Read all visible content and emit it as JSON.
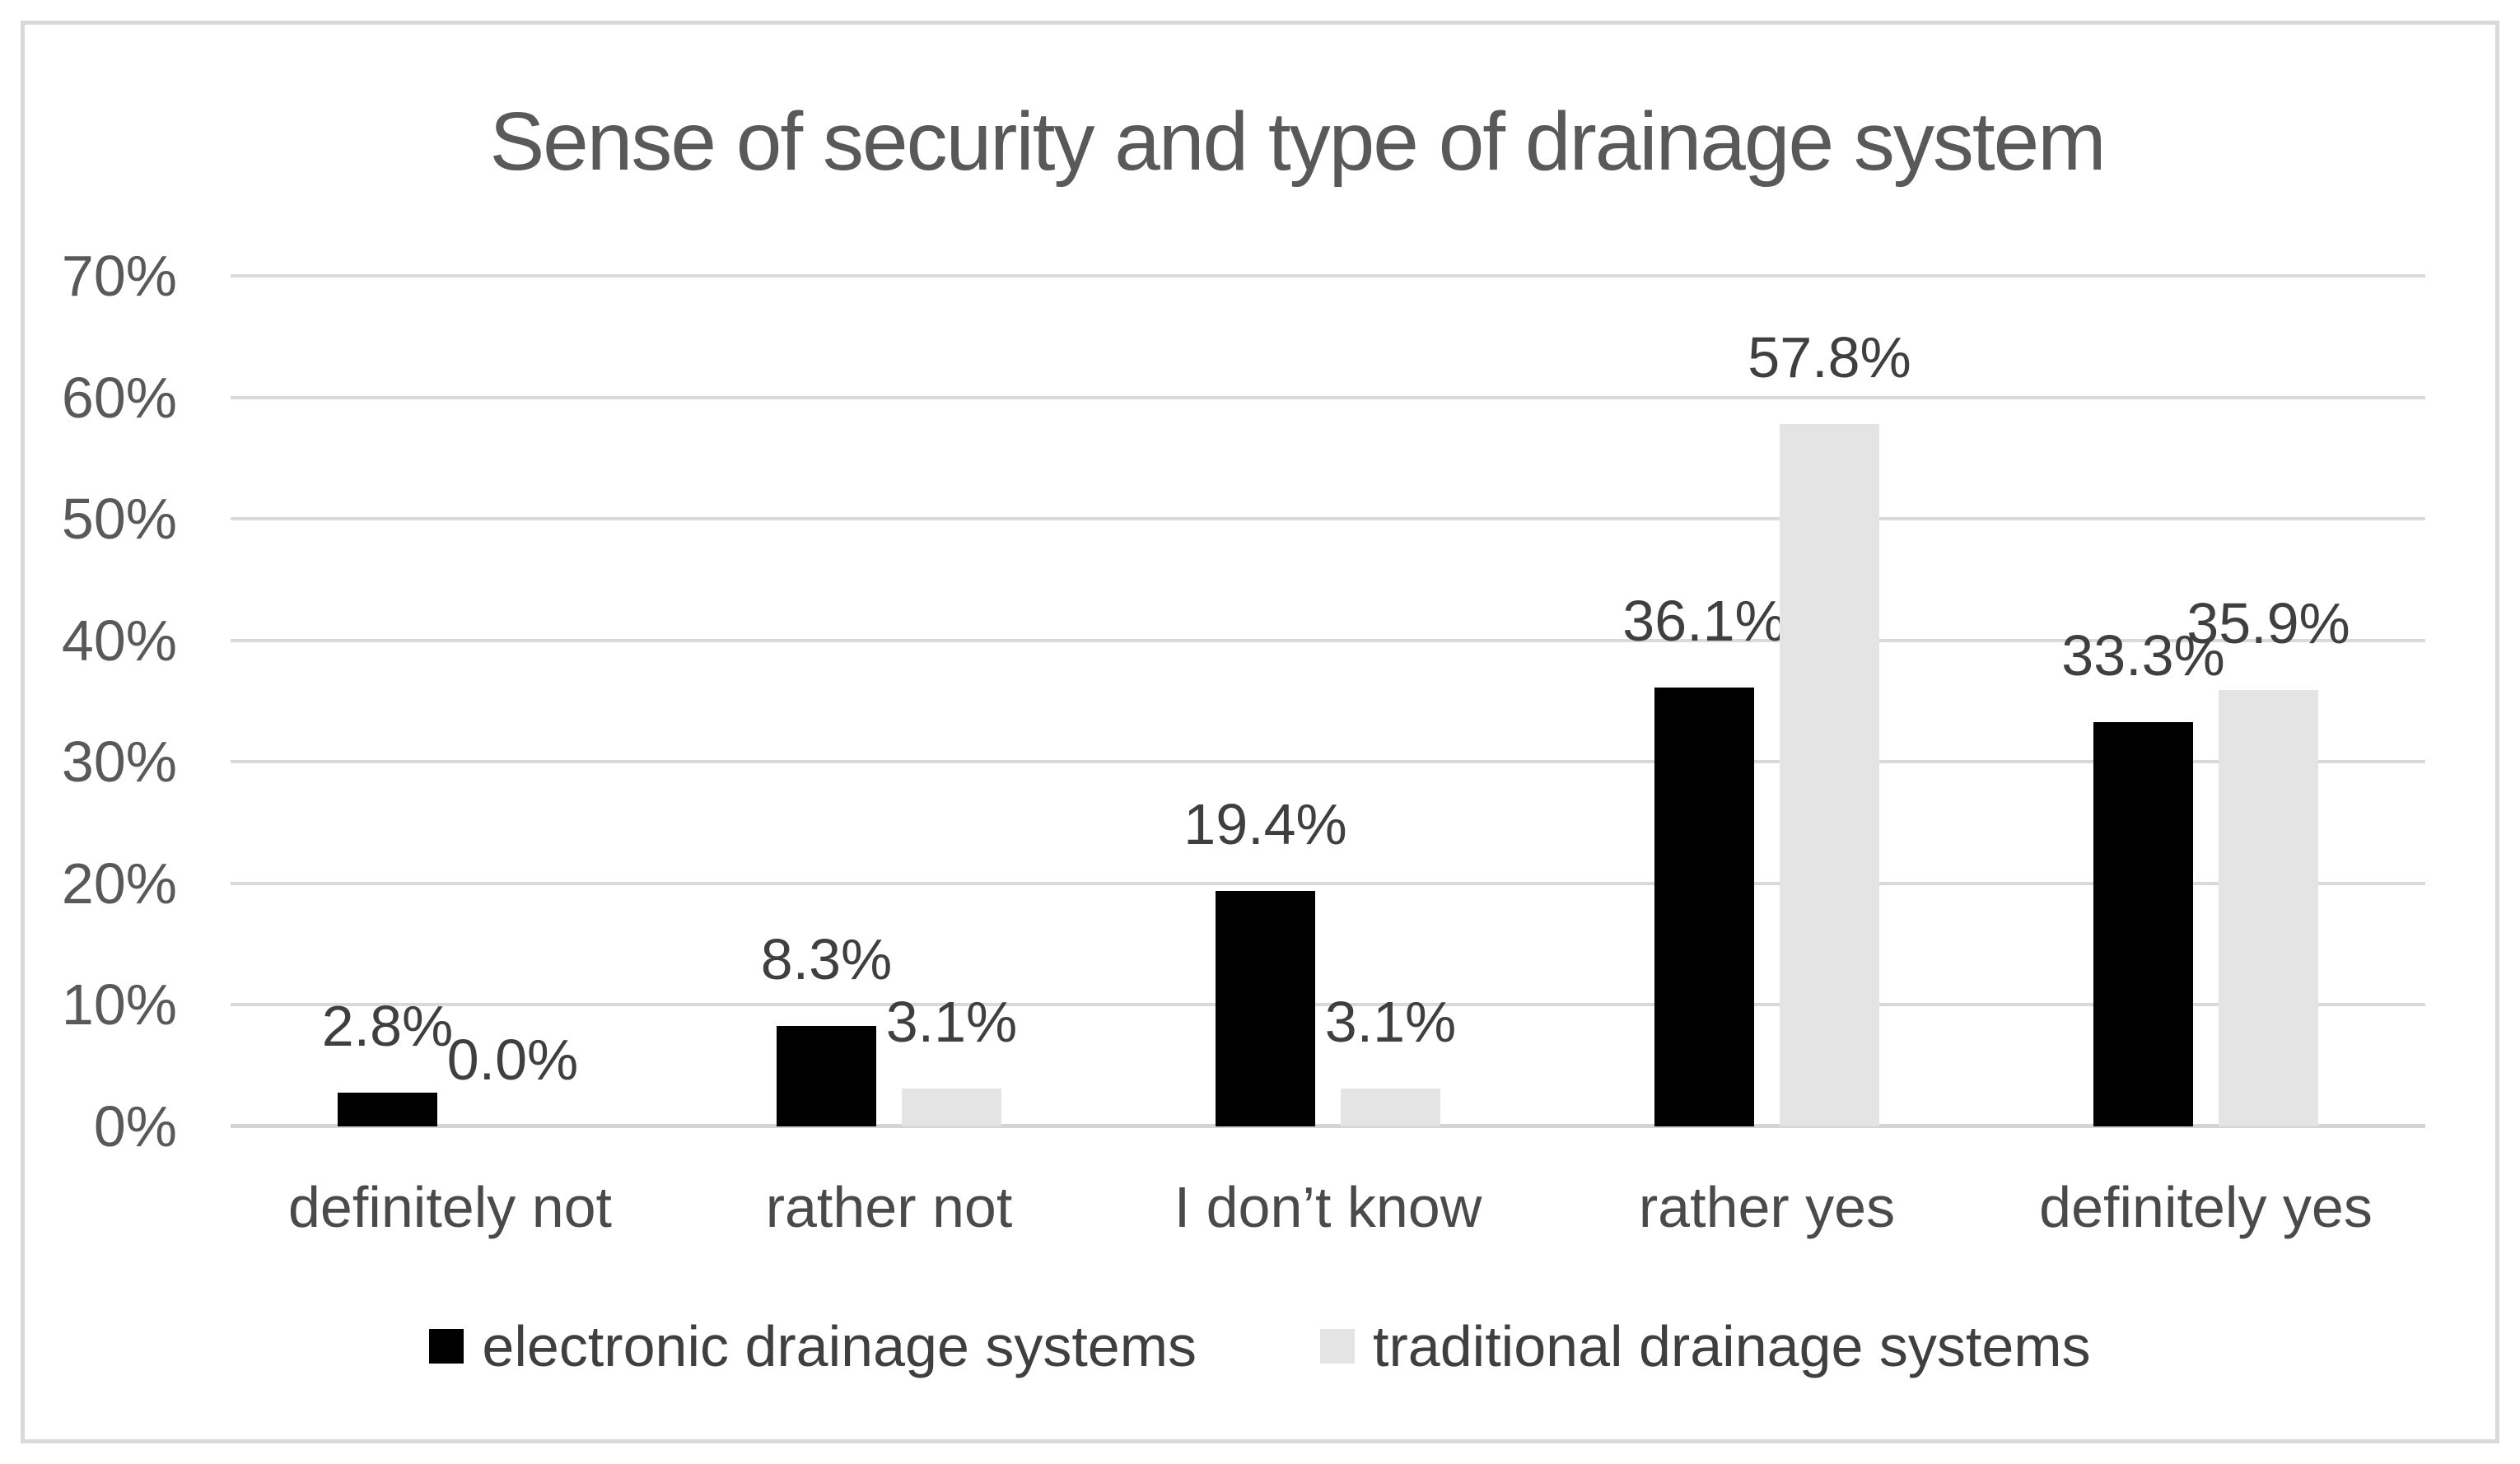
{
  "window": {
    "background_color": "#ffffff",
    "frame_border_color": "#d9d9d9"
  },
  "chart_data": {
    "type": "bar",
    "title": "Sense of security and type of drainage system",
    "categories": [
      "definitely not",
      "rather not",
      "I don’t know",
      "rather yes",
      "definitely yes"
    ],
    "series": [
      {
        "name": "electronic drainage systems",
        "color": "#000000",
        "values": [
          2.8,
          8.3,
          19.4,
          36.1,
          33.3
        ],
        "labels": [
          "2.8%",
          "8.3%",
          "19.4%",
          "36.1%",
          "33.3%"
        ]
      },
      {
        "name": "traditional drainage systems",
        "color": "#e4e4e4",
        "values": [
          0.0,
          3.1,
          3.1,
          57.8,
          35.9
        ],
        "labels": [
          "0.0%",
          "3.1%",
          "3.1%",
          "57.8%",
          "35.9%"
        ]
      }
    ],
    "y_axis": {
      "min": 0,
      "max": 70,
      "step": 10,
      "tick_labels": [
        "0%",
        "10%",
        "20%",
        "30%",
        "40%",
        "50%",
        "60%",
        "70%"
      ]
    },
    "ylim": [
      0,
      70
    ],
    "grid": true,
    "gridline_color": "#d9d9d9",
    "legend_position": "bottom",
    "title_color": "#595959",
    "tick_label_color": "#595959",
    "category_label_color": "#4a4a4a",
    "data_label_color": "#3f3f3f"
  }
}
